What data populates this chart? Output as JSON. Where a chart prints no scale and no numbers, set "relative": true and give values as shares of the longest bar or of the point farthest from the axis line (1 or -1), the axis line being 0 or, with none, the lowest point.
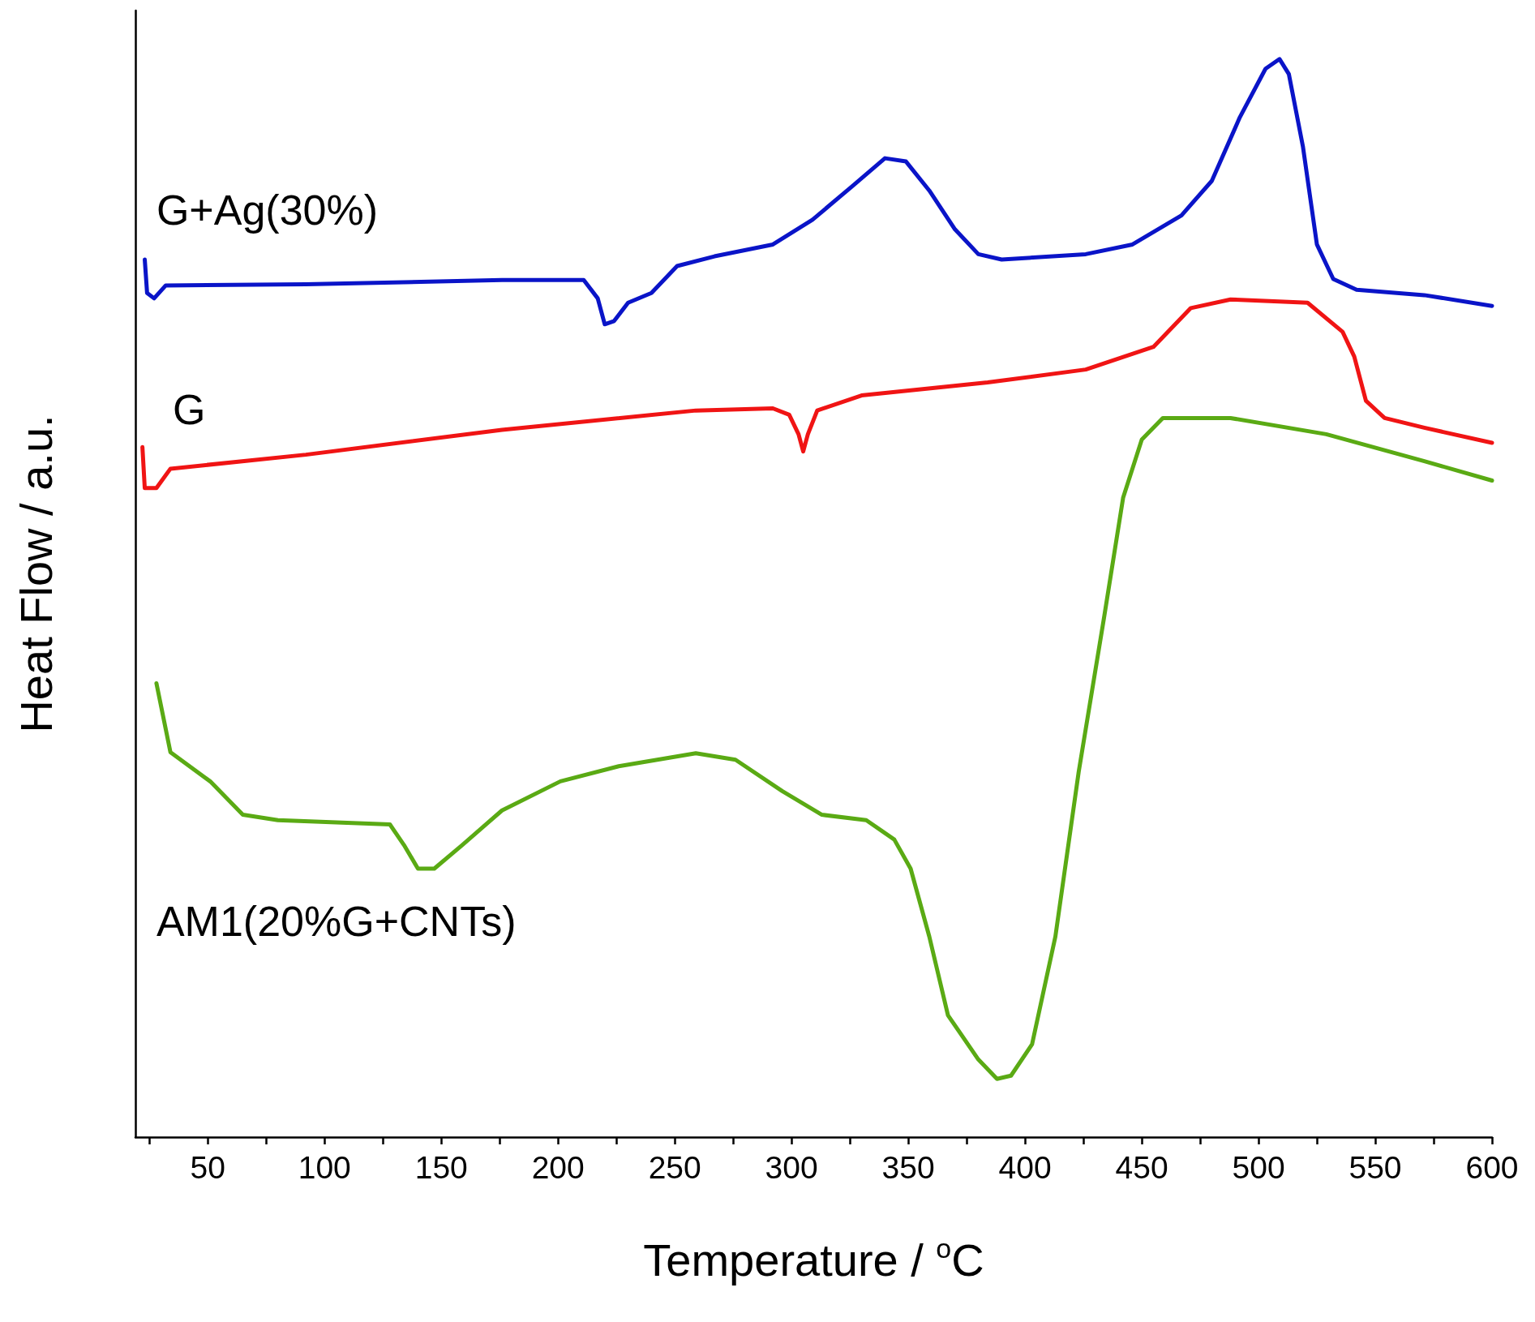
{
  "chart_data": {
    "type": "line",
    "relative": true,
    "xlabel": "Temperature / $^{o}$C",
    "ylabel": "Heat Flow / a.u.",
    "xlim": [
      19,
      600
    ],
    "xticks": [
      {
        "value": 25,
        "label": null
      },
      50,
      {
        "value": 75,
        "label": null
      },
      100,
      {
        "value": 125,
        "label": null
      },
      150,
      {
        "value": 175,
        "label": null
      },
      200,
      {
        "value": 225,
        "label": null
      },
      250,
      {
        "value": 275,
        "label": null
      },
      300,
      {
        "value": 325,
        "label": null
      },
      350,
      {
        "value": 375,
        "label": null
      },
      400,
      {
        "value": 425,
        "label": null
      },
      450,
      {
        "value": 475,
        "label": null
      },
      500,
      {
        "value": 525,
        "label": null
      },
      550,
      {
        "value": 575,
        "label": null
      },
      600
    ],
    "grid": false,
    "legend": false,
    "marker": "none",
    "line_style": "solid",
    "series": [
      {
        "name": "G+Ag(30%)",
        "color": "#0a14c8",
        "x": [
          23,
          24,
          27,
          32,
          92,
          176,
          211,
          217,
          220,
          224,
          230,
          240,
          251,
          267,
          292,
          309,
          326,
          340,
          349,
          359,
          370,
          380,
          390,
          426,
          446,
          467,
          480,
          492,
          503,
          509,
          513,
          519,
          525,
          532,
          542,
          571,
          600
        ],
        "values": [
          0.814,
          0.783,
          0.778,
          0.79,
          0.791,
          0.795,
          0.795,
          0.778,
          0.754,
          0.757,
          0.774,
          0.783,
          0.808,
          0.817,
          0.828,
          0.851,
          0.882,
          0.908,
          0.905,
          0.878,
          0.842,
          0.819,
          0.814,
          0.819,
          0.828,
          0.855,
          0.887,
          0.946,
          0.991,
          1.0,
          0.986,
          0.919,
          0.828,
          0.796,
          0.786,
          0.781,
          0.771
        ]
      },
      {
        "name": "G",
        "color": "#f01414",
        "x": [
          22,
          23,
          28,
          34,
          92,
          176,
          259,
          292,
          299,
          303,
          305,
          307,
          311,
          330,
          384,
          426,
          455,
          471,
          488,
          521,
          536,
          541,
          546,
          554,
          571,
          600
        ],
        "values": [
          0.64,
          0.602,
          0.602,
          0.62,
          0.633,
          0.656,
          0.674,
          0.676,
          0.67,
          0.652,
          0.636,
          0.652,
          0.674,
          0.688,
          0.7,
          0.712,
          0.733,
          0.769,
          0.777,
          0.774,
          0.747,
          0.724,
          0.683,
          0.667,
          0.658,
          0.644
        ]
      },
      {
        "name": "AM1(20%G+CNTs)",
        "color": "#5aaa14",
        "x": [
          28,
          34,
          51,
          65,
          80,
          128,
          134,
          140,
          147,
          159,
          176,
          201,
          226,
          259,
          276,
          296,
          313,
          332,
          344,
          351,
          359,
          367,
          380,
          388,
          394,
          403,
          413,
          423,
          434,
          442,
          450,
          459,
          488,
          529,
          571,
          600
        ],
        "values": [
          0.421,
          0.357,
          0.33,
          0.299,
          0.294,
          0.29,
          0.271,
          0.249,
          0.249,
          0.271,
          0.303,
          0.33,
          0.344,
          0.356,
          0.35,
          0.321,
          0.299,
          0.294,
          0.276,
          0.249,
          0.186,
          0.113,
          0.072,
          0.054,
          0.057,
          0.086,
          0.186,
          0.339,
          0.484,
          0.593,
          0.647,
          0.667,
          0.667,
          0.652,
          0.627,
          0.609
        ]
      }
    ]
  }
}
